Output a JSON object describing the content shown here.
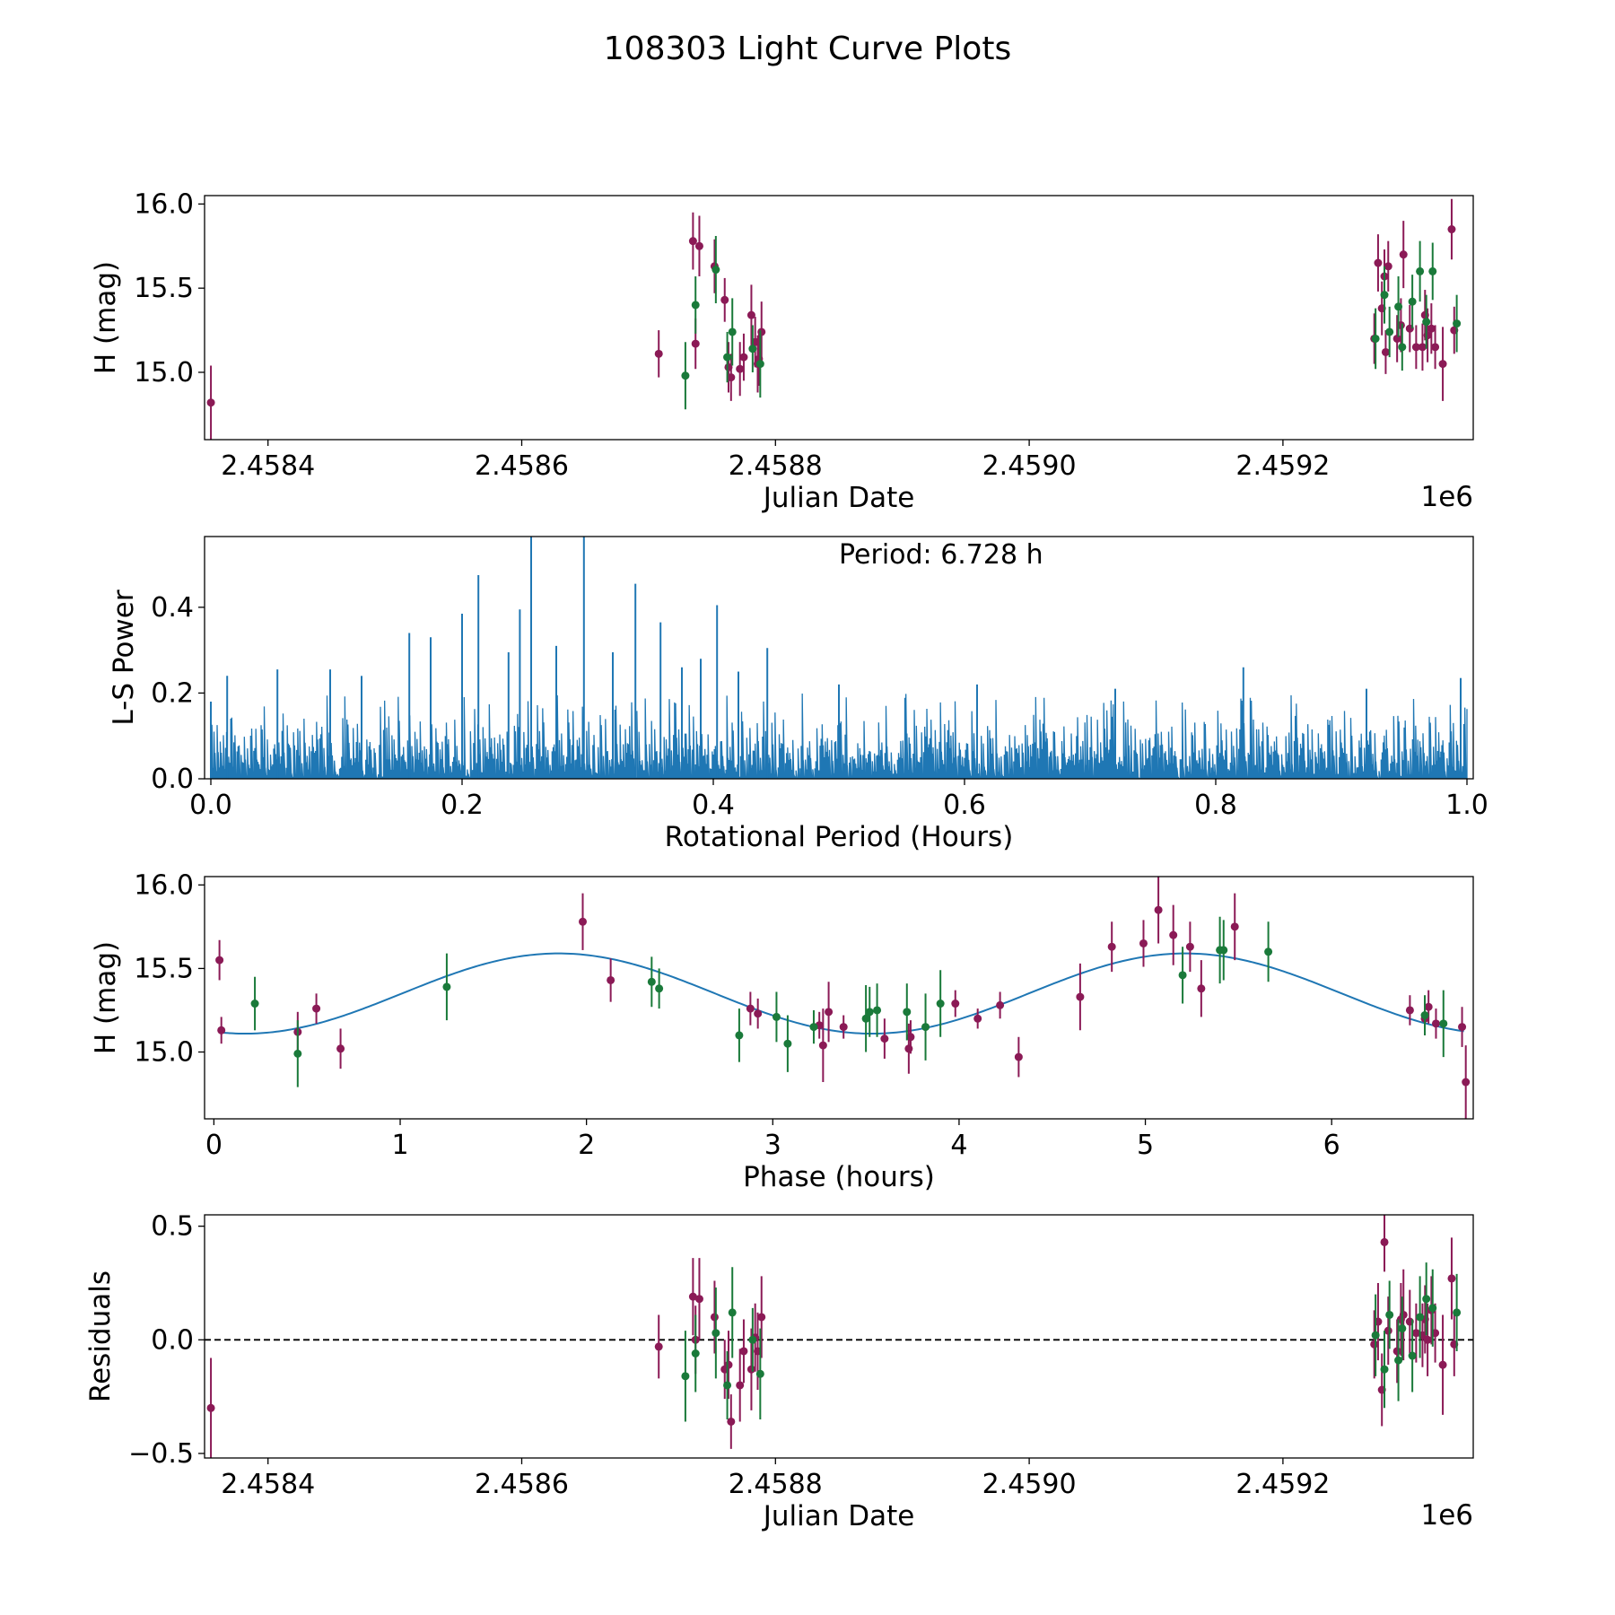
{
  "title": "108303 Light Curve Plots",
  "colors": {
    "series_a": "#8b1a56",
    "series_b": "#1a7a3a",
    "model": "#1f77b4",
    "periodogram": "#1f77b4",
    "zero_line": "#000000"
  },
  "chart_data": [
    {
      "id": "lightcurve",
      "type": "scatter",
      "xlabel": "Julian Date",
      "ylabel": "H (mag)",
      "x_offset_label": "1e6",
      "xlim": [
        2.45835,
        2.45935
      ],
      "ylim": [
        14.6,
        16.05
      ],
      "xticks": [
        2.4584,
        2.4586,
        2.4588,
        2.459,
        2.4592
      ],
      "xtick_labels": [
        "2.4584",
        "2.4586",
        "2.4588",
        "2.4590",
        "2.4592"
      ],
      "yticks": [
        15.0,
        15.5,
        16.0
      ],
      "ytick_labels": [
        "15.0",
        "15.5",
        "16.0"
      ],
      "series": [
        {
          "name": "series_a",
          "points": [
            [
              2.458355,
              14.82,
              0.22
            ],
            [
              2.458708,
              15.11,
              0.14
            ],
            [
              2.458735,
              15.78,
              0.17
            ],
            [
              2.458737,
              15.17,
              0.15
            ],
            [
              2.45874,
              15.75,
              0.18
            ],
            [
              2.458752,
              15.63,
              0.16
            ],
            [
              2.45876,
              15.43,
              0.13
            ],
            [
              2.458763,
              15.03,
              0.15
            ],
            [
              2.458765,
              14.97,
              0.14
            ],
            [
              2.458772,
              15.02,
              0.16
            ],
            [
              2.458775,
              15.09,
              0.14
            ],
            [
              2.458781,
              15.34,
              0.18
            ],
            [
              2.458784,
              15.18,
              0.15
            ],
            [
              2.458786,
              15.05,
              0.17
            ],
            [
              2.458787,
              15.08,
              0.16
            ],
            [
              2.458789,
              15.24,
              0.18
            ],
            [
              2.459272,
              15.2,
              0.15
            ],
            [
              2.459275,
              15.65,
              0.17
            ],
            [
              2.459278,
              15.38,
              0.16
            ],
            [
              2.45928,
              15.57,
              0.16
            ],
            [
              2.459281,
              15.12,
              0.13
            ],
            [
              2.459283,
              15.63,
              0.15
            ],
            [
              2.45929,
              15.2,
              0.14
            ],
            [
              2.459293,
              15.28,
              0.16
            ],
            [
              2.459295,
              15.7,
              0.2
            ],
            [
              2.4593,
              15.26,
              0.14
            ],
            [
              2.459305,
              15.15,
              0.13
            ],
            [
              2.45931,
              15.15,
              0.14
            ],
            [
              2.459312,
              15.34,
              0.15
            ],
            [
              2.459314,
              15.22,
              0.16
            ],
            [
              2.459317,
              15.26,
              0.15
            ],
            [
              2.45932,
              15.15,
              0.13
            ],
            [
              2.459326,
              15.05,
              0.22
            ],
            [
              2.459333,
              15.85,
              0.18
            ],
            [
              2.459335,
              15.25,
              0.14
            ]
          ]
        },
        {
          "name": "series_b",
          "points": [
            [
              2.458729,
              14.98,
              0.2
            ],
            [
              2.458737,
              15.4,
              0.17
            ],
            [
              2.458753,
              15.61,
              0.2
            ],
            [
              2.458762,
              15.09,
              0.15
            ],
            [
              2.458766,
              15.24,
              0.2
            ],
            [
              2.458782,
              15.14,
              0.14
            ],
            [
              2.458788,
              15.05,
              0.2
            ],
            [
              2.459273,
              15.2,
              0.18
            ],
            [
              2.45928,
              15.46,
              0.17
            ],
            [
              2.459284,
              15.24,
              0.15
            ],
            [
              2.459291,
              15.39,
              0.18
            ],
            [
              2.459294,
              15.15,
              0.14
            ],
            [
              2.459302,
              15.42,
              0.16
            ],
            [
              2.459308,
              15.6,
              0.18
            ],
            [
              2.459313,
              15.3,
              0.16
            ],
            [
              2.459318,
              15.6,
              0.17
            ],
            [
              2.459337,
              15.29,
              0.17
            ]
          ]
        }
      ]
    },
    {
      "id": "periodogram",
      "type": "line",
      "xlabel": "Rotational Period (Hours)",
      "ylabel": "L-S Power",
      "annotation": "Period: 6.728 h",
      "xlim": [
        -0.005,
        1.005
      ],
      "ylim": [
        0,
        0.565
      ],
      "xticks": [
        0.0,
        0.2,
        0.4,
        0.6,
        0.8,
        1.0
      ],
      "xtick_labels": [
        "0.0",
        "0.2",
        "0.4",
        "0.6",
        "0.8",
        "1.0"
      ],
      "yticks": [
        0.0,
        0.2,
        0.4
      ],
      "ytick_labels": [
        "0.0",
        "0.2",
        "0.4"
      ],
      "samples": 1200,
      "baseline_max": 0.16,
      "peaks": [
        [
          0.0,
          0.18
        ],
        [
          0.013,
          0.24
        ],
        [
          0.053,
          0.255
        ],
        [
          0.095,
          0.255
        ],
        [
          0.12,
          0.24
        ],
        [
          0.158,
          0.34
        ],
        [
          0.175,
          0.33
        ],
        [
          0.2,
          0.385
        ],
        [
          0.213,
          0.475
        ],
        [
          0.237,
          0.295
        ],
        [
          0.246,
          0.395
        ],
        [
          0.255,
          0.58
        ],
        [
          0.275,
          0.31
        ],
        [
          0.297,
          0.58
        ],
        [
          0.32,
          0.295
        ],
        [
          0.338,
          0.455
        ],
        [
          0.358,
          0.365
        ],
        [
          0.375,
          0.26
        ],
        [
          0.39,
          0.28
        ],
        [
          0.403,
          0.405
        ],
        [
          0.42,
          0.25
        ],
        [
          0.443,
          0.305
        ],
        [
          0.5,
          0.22
        ],
        [
          0.61,
          0.22
        ],
        [
          0.72,
          0.21
        ],
        [
          0.822,
          0.26
        ],
        [
          0.92,
          0.21
        ],
        [
          0.995,
          0.235
        ]
      ]
    },
    {
      "id": "phased",
      "type": "scatter",
      "xlabel": "Phase (hours)",
      "ylabel": "H (mag)",
      "xlim": [
        -0.05,
        6.76
      ],
      "ylim": [
        14.6,
        16.05
      ],
      "xticks": [
        0,
        1,
        2,
        3,
        4,
        5,
        6
      ],
      "xtick_labels": [
        "0",
        "1",
        "2",
        "3",
        "4",
        "5",
        "6"
      ],
      "yticks": [
        15.0,
        15.5,
        16.0
      ],
      "ytick_labels": [
        "15.0",
        "15.5",
        "16.0"
      ],
      "model": {
        "mean": 15.35,
        "amplitude": 0.24,
        "period": 3.364,
        "phase_peak": 1.85
      },
      "series": [
        {
          "name": "series_a",
          "points": [
            [
              0.03,
              15.55,
              0.12
            ],
            [
              0.04,
              15.13,
              0.08
            ],
            [
              0.45,
              15.12,
              0.12
            ],
            [
              0.55,
              15.26,
              0.09
            ],
            [
              0.68,
              15.02,
              0.12
            ],
            [
              1.98,
              15.78,
              0.17
            ],
            [
              2.13,
              15.43,
              0.13
            ],
            [
              2.88,
              15.26,
              0.1
            ],
            [
              2.92,
              15.23,
              0.09
            ],
            [
              3.25,
              15.16,
              0.08
            ],
            [
              3.27,
              15.04,
              0.22
            ],
            [
              3.3,
              15.24,
              0.18
            ],
            [
              3.38,
              15.15,
              0.07
            ],
            [
              3.6,
              15.08,
              0.12
            ],
            [
              3.73,
              15.02,
              0.15
            ],
            [
              3.74,
              15.09,
              0.1
            ],
            [
              3.98,
              15.29,
              0.08
            ],
            [
              4.1,
              15.2,
              0.06
            ],
            [
              4.22,
              15.28,
              0.08
            ],
            [
              4.32,
              14.97,
              0.12
            ],
            [
              4.65,
              15.33,
              0.2
            ],
            [
              4.82,
              15.63,
              0.15
            ],
            [
              4.99,
              15.65,
              0.14
            ],
            [
              5.07,
              15.85,
              0.2
            ],
            [
              5.15,
              15.7,
              0.18
            ],
            [
              5.24,
              15.63,
              0.15
            ],
            [
              5.3,
              15.38,
              0.17
            ],
            [
              5.48,
              15.75,
              0.2
            ],
            [
              6.42,
              15.25,
              0.09
            ],
            [
              6.5,
              15.2,
              0.1
            ],
            [
              6.52,
              15.27,
              0.1
            ],
            [
              6.56,
              15.17,
              0.09
            ],
            [
              6.7,
              15.15,
              0.12
            ],
            [
              6.72,
              14.82,
              0.22
            ]
          ]
        },
        {
          "name": "series_b",
          "points": [
            [
              0.22,
              15.29,
              0.16
            ],
            [
              0.45,
              14.99,
              0.2
            ],
            [
              1.25,
              15.39,
              0.2
            ],
            [
              2.35,
              15.42,
              0.15
            ],
            [
              2.39,
              15.38,
              0.12
            ],
            [
              2.82,
              15.1,
              0.16
            ],
            [
              3.02,
              15.21,
              0.15
            ],
            [
              3.08,
              15.05,
              0.17
            ],
            [
              3.22,
              15.15,
              0.1
            ],
            [
              3.5,
              15.2,
              0.2
            ],
            [
              3.52,
              15.24,
              0.15
            ],
            [
              3.56,
              15.25,
              0.16
            ],
            [
              3.72,
              15.24,
              0.17
            ],
            [
              3.82,
              15.15,
              0.2
            ],
            [
              3.9,
              15.29,
              0.2
            ],
            [
              5.2,
              15.46,
              0.17
            ],
            [
              5.4,
              15.61,
              0.2
            ],
            [
              5.42,
              15.61,
              0.18
            ],
            [
              5.66,
              15.6,
              0.18
            ],
            [
              6.5,
              15.22,
              0.12
            ],
            [
              6.6,
              15.17,
              0.2
            ]
          ]
        }
      ]
    },
    {
      "id": "residuals",
      "type": "scatter",
      "xlabel": "Julian Date",
      "ylabel": "Residuals",
      "x_offset_label": "1e6",
      "xlim": [
        2.45835,
        2.45935
      ],
      "ylim": [
        -0.52,
        0.55
      ],
      "xticks": [
        2.4584,
        2.4586,
        2.4588,
        2.459,
        2.4592
      ],
      "xtick_labels": [
        "2.4584",
        "2.4586",
        "2.4588",
        "2.4590",
        "2.4592"
      ],
      "yticks": [
        -0.5,
        0.0,
        0.5
      ],
      "ytick_labels": [
        "−0.5",
        "0.0",
        "0.5"
      ],
      "zero_line": 0,
      "series": [
        {
          "name": "series_a",
          "points": [
            [
              2.458355,
              -0.3,
              0.22
            ],
            [
              2.458708,
              -0.03,
              0.14
            ],
            [
              2.458735,
              0.19,
              0.17
            ],
            [
              2.458737,
              0.0,
              0.15
            ],
            [
              2.45874,
              0.18,
              0.18
            ],
            [
              2.458752,
              0.1,
              0.16
            ],
            [
              2.45876,
              -0.13,
              0.13
            ],
            [
              2.458763,
              -0.11,
              0.15
            ],
            [
              2.458765,
              -0.36,
              0.12
            ],
            [
              2.458772,
              -0.2,
              0.16
            ],
            [
              2.458775,
              -0.05,
              0.14
            ],
            [
              2.458781,
              -0.13,
              0.18
            ],
            [
              2.458784,
              0.01,
              0.15
            ],
            [
              2.458786,
              -0.05,
              0.17
            ],
            [
              2.458789,
              0.1,
              0.18
            ],
            [
              2.459272,
              -0.02,
              0.15
            ],
            [
              2.459275,
              0.08,
              0.17
            ],
            [
              2.459278,
              -0.22,
              0.16
            ],
            [
              2.45928,
              0.43,
              0.13
            ],
            [
              2.459283,
              0.04,
              0.15
            ],
            [
              2.45929,
              -0.05,
              0.14
            ],
            [
              2.459293,
              0.09,
              0.16
            ],
            [
              2.459295,
              0.11,
              0.2
            ],
            [
              2.4593,
              0.08,
              0.14
            ],
            [
              2.459305,
              0.03,
              0.13
            ],
            [
              2.45931,
              0.02,
              0.14
            ],
            [
              2.459312,
              0.09,
              0.15
            ],
            [
              2.459314,
              0.0,
              0.16
            ],
            [
              2.459317,
              0.13,
              0.15
            ],
            [
              2.45932,
              0.03,
              0.13
            ],
            [
              2.459326,
              -0.11,
              0.22
            ],
            [
              2.459333,
              0.27,
              0.18
            ],
            [
              2.459335,
              -0.02,
              0.14
            ]
          ]
        },
        {
          "name": "series_b",
          "points": [
            [
              2.458729,
              -0.16,
              0.2
            ],
            [
              2.458737,
              -0.06,
              0.17
            ],
            [
              2.458753,
              0.03,
              0.2
            ],
            [
              2.458762,
              -0.2,
              0.15
            ],
            [
              2.458766,
              0.12,
              0.2
            ],
            [
              2.458782,
              0.0,
              0.14
            ],
            [
              2.458788,
              -0.15,
              0.2
            ],
            [
              2.459273,
              0.02,
              0.18
            ],
            [
              2.45928,
              -0.13,
              0.17
            ],
            [
              2.459284,
              0.11,
              0.15
            ],
            [
              2.459291,
              -0.09,
              0.18
            ],
            [
              2.459294,
              0.05,
              0.14
            ],
            [
              2.459302,
              -0.07,
              0.16
            ],
            [
              2.459308,
              0.1,
              0.18
            ],
            [
              2.459313,
              0.18,
              0.16
            ],
            [
              2.459318,
              0.14,
              0.17
            ],
            [
              2.459337,
              0.12,
              0.17
            ]
          ]
        }
      ]
    }
  ]
}
